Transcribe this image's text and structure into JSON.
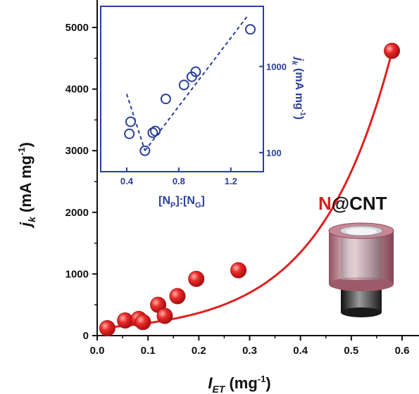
{
  "chart_data": [
    {
      "type": "scatter",
      "xlim": [
        0,
        0.6
      ],
      "ylim": [
        0,
        5000
      ],
      "x_ticks": [
        "0.0",
        "0.1",
        "0.2",
        "0.3",
        "0.4",
        "0.5",
        "0.6"
      ],
      "y_ticks": [
        "0",
        "1000",
        "2000",
        "3000",
        "4000",
        "5000"
      ],
      "xlabel": {
        "main": "I",
        "sub": "ET",
        "rest": " (mg",
        "sup": "-1",
        "close": ")"
      },
      "ylabel": {
        "main": "j",
        "sub": "k",
        "rest": " (mA  mg",
        "sup": "-1",
        "close": ")"
      },
      "x": [
        0.02,
        0.055,
        0.082,
        0.09,
        0.12,
        0.133,
        0.158,
        0.195,
        0.278,
        0.58
      ],
      "y": [
        120,
        245,
        270,
        220,
        500,
        320,
        640,
        920,
        1060,
        4620
      ],
      "fit_curve": {
        "type": "exponential",
        "y0": 40,
        "a": 82,
        "b": 6.93
      },
      "marker_color": "#e02020",
      "line_color": "#e02020"
    },
    {
      "type": "scatter",
      "inset": true,
      "xlim": [
        0.2,
        1.45
      ],
      "y_scale": "log",
      "ylim": [
        60,
        5000
      ],
      "x_ticks": [
        "0.4",
        "0.8",
        "1.2"
      ],
      "y_ticks": [
        "100",
        "1000"
      ],
      "xlabel": "[N",
      "xlabel_parts": {
        "a": "[N",
        "sub1": "P",
        "b": "]:[N",
        "sub2": "G",
        "c": "]"
      },
      "ylabel": {
        "main": "j",
        "sub": "k",
        "rest": " (mA mg",
        "sup": "-1",
        "close": ")"
      },
      "x": [
        0.42,
        0.43,
        0.54,
        0.6,
        0.62,
        0.7,
        0.84,
        0.9,
        0.93,
        1.35
      ],
      "y": [
        165,
        228,
        105,
        170,
        178,
        420,
        610,
        760,
        870,
        2700
      ],
      "trend_lines": [
        {
          "x": [
            0.4,
            0.54
          ],
          "y": [
            480,
            105
          ]
        },
        {
          "x": [
            0.54,
            1.33
          ],
          "y": [
            105,
            3900
          ]
        }
      ],
      "marker_color": "#2a3f9a"
    }
  ],
  "legend": {
    "prefix": "N",
    "rest": "@CNT",
    "prefix_color": "#d62020"
  }
}
